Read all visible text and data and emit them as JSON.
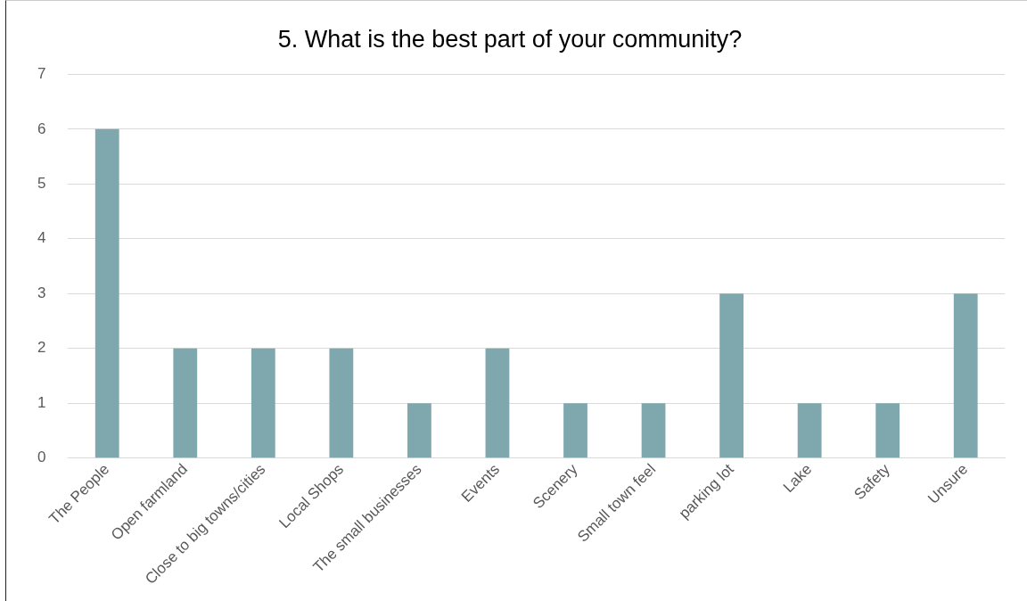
{
  "chart_data": {
    "type": "bar",
    "title": "5. What is the best part of your community?",
    "categories": [
      "The People",
      "Open farmland",
      "Close to big towns/cities",
      "Local Shops",
      "The small businesses",
      "Events",
      "Scenery",
      "Small town feel",
      "parking lot",
      "Lake",
      "Safety",
      "Unsure"
    ],
    "values": [
      6,
      2,
      2,
      2,
      1,
      2,
      1,
      1,
      3,
      1,
      1,
      3
    ],
    "color": "#7fa8ae",
    "ylim": [
      0,
      7
    ],
    "yticks": [
      0,
      1,
      2,
      3,
      4,
      5,
      6,
      7
    ],
    "grid": "y",
    "legend": false
  }
}
